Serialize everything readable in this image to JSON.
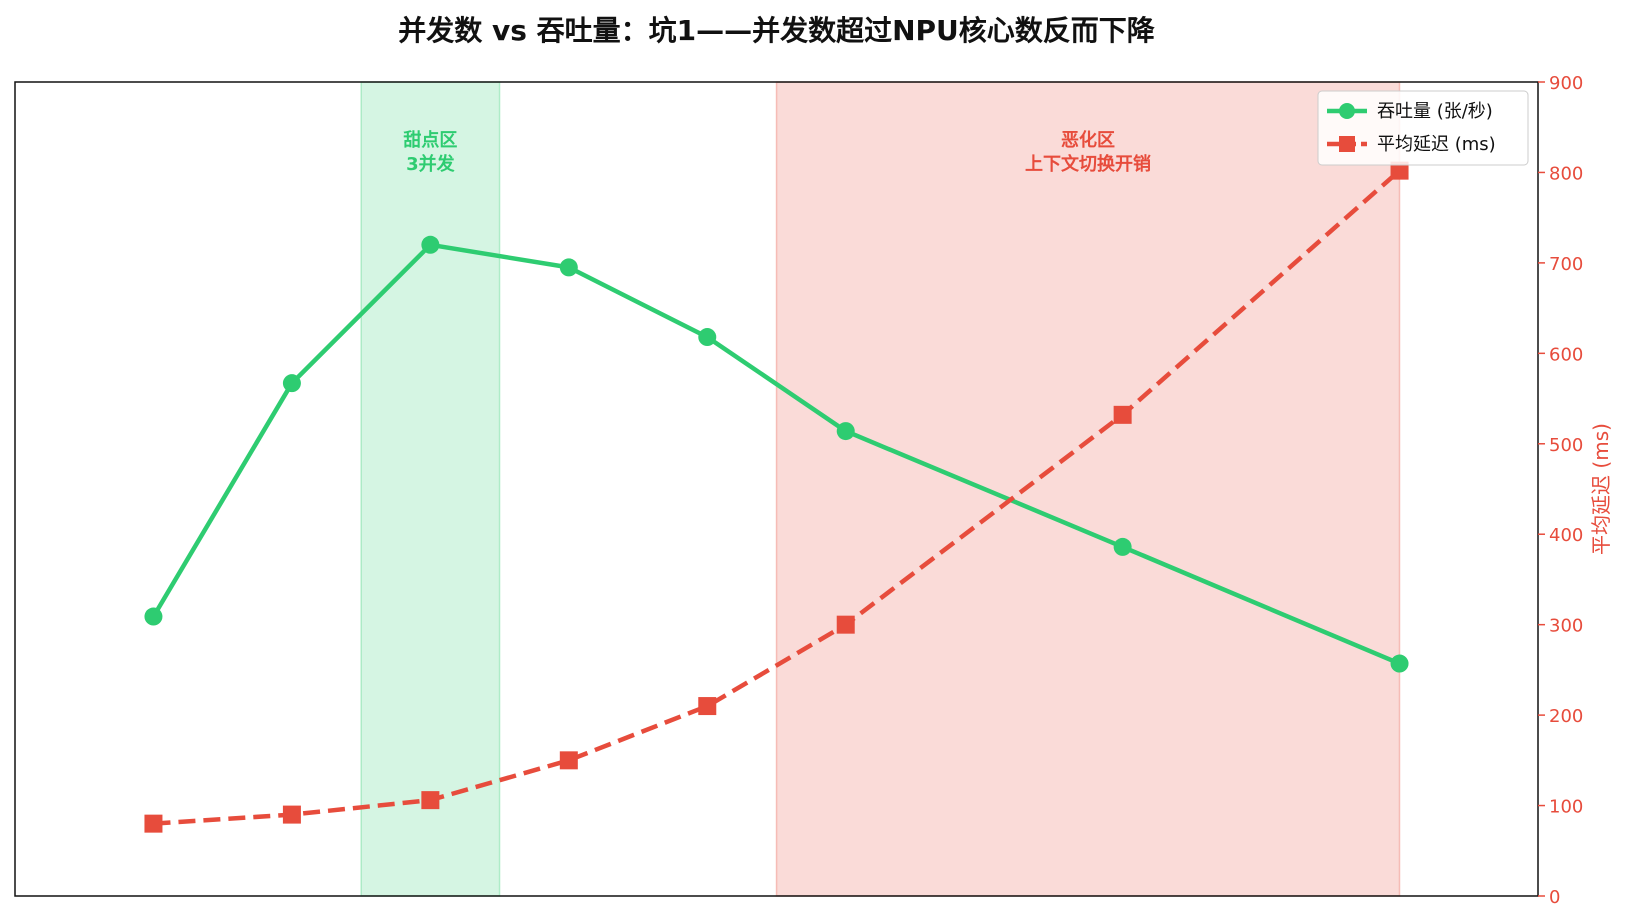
{
  "chart_data": {
    "type": "line",
    "title": "并发数 vs 吞吐量：坑1——并发数超过NPU核心数反而下降",
    "x": [
      1,
      2,
      3,
      4,
      5,
      6,
      8,
      10
    ],
    "xlim": [
      0,
      11
    ],
    "series": [
      {
        "name": "吞吐量 (张/秒)",
        "axis": "left",
        "marker": "circle",
        "line_style": "solid",
        "color": "#2ecc71",
        "values": [
          309,
          567,
          720,
          695,
          618,
          514,
          386,
          257
        ]
      },
      {
        "name": "平均延迟 (ms)",
        "axis": "right",
        "marker": "square",
        "line_style": "dashed",
        "color": "#e74c3c",
        "values": [
          80,
          90,
          106,
          150,
          210,
          300,
          532,
          802
        ]
      }
    ],
    "left_axis": {
      "ylim": [
        0,
        900
      ],
      "visible": false
    },
    "right_axis": {
      "label": "平均延迟 (ms)",
      "ylim": [
        0,
        900
      ],
      "ticks": [
        0,
        100,
        200,
        300,
        400,
        500,
        600,
        700,
        800,
        900
      ],
      "color": "#e74c3c"
    },
    "shaded_regions": [
      {
        "x0": 2.5,
        "x1": 3.5,
        "label": "甜点区\n3并发",
        "fill": "#2ecc71",
        "label_color": "#2ecc71"
      },
      {
        "x0": 5.5,
        "x1": 10.0,
        "label": "恶化区\n上下文切换开销",
        "fill": "#e74c3c",
        "label_color": "#e74c3c"
      }
    ],
    "grid": false,
    "legend_position": "top-right"
  }
}
